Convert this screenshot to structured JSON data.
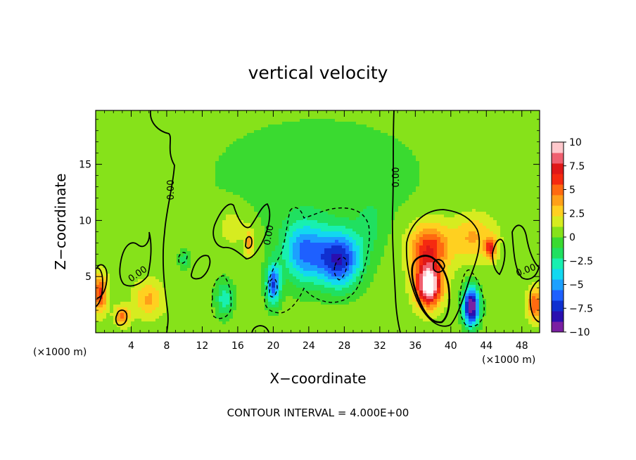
{
  "chart_data": {
    "type": "heatmap",
    "title": "vertical velocity",
    "xlabel": "X−coordinate",
    "ylabel": "Z−coordinate",
    "x_unit": "(×1000 m)",
    "y_unit": "(×1000 m)",
    "x_ticks": [
      4,
      8,
      12,
      16,
      20,
      24,
      28,
      32,
      36,
      40,
      44,
      48
    ],
    "y_ticks": [
      5,
      10,
      15
    ],
    "xlim": [
      0,
      50
    ],
    "ylim": [
      0,
      19.8
    ],
    "colorbar": {
      "ticks": [
        "10",
        "7.5",
        "5",
        "2.5",
        "0",
        "−2.5",
        "−5",
        "−7.5",
        "−10"
      ],
      "range": [
        -10,
        10
      ],
      "colors": [
        "#7a1fa2",
        "#2a0fb0",
        "#1030d0",
        "#1e60ff",
        "#1ca0ff",
        "#12d8f0",
        "#18f0b0",
        "#20e060",
        "#3ada30",
        "#86e21a",
        "#d6ec20",
        "#ffd020",
        "#ffa018",
        "#ff6a10",
        "#f52a10",
        "#e01818",
        "#f06070",
        "#ffc8cc"
      ]
    },
    "contour_interval_text": "CONTOUR INTERVAL = 4.000E+00",
    "contour_labels": [
      "0.00",
      "0.00",
      "0.00",
      "0.00",
      "0.00"
    ],
    "features": [
      {
        "kind": "updraft",
        "x": 37.5,
        "z": 4.2,
        "value": 11,
        "sx": 1.4,
        "sz": 1.8
      },
      {
        "kind": "updraft",
        "x": 37.5,
        "z": 7.5,
        "value": 6,
        "sx": 2.2,
        "sz": 2.2
      },
      {
        "kind": "updraft",
        "x": 42.5,
        "z": 8.5,
        "value": 3,
        "sx": 2.5,
        "sz": 2.0
      },
      {
        "kind": "updraft",
        "x": 44.5,
        "z": 7.5,
        "value": 5.5,
        "sx": 0.6,
        "sz": 0.9
      },
      {
        "kind": "updraft",
        "x": 0.5,
        "z": 3.5,
        "value": 5.5,
        "sx": 0.8,
        "sz": 1.6
      },
      {
        "kind": "updraft",
        "x": 49.5,
        "z": 2.5,
        "value": 5,
        "sx": 0.8,
        "sz": 1.4
      },
      {
        "kind": "updraft",
        "x": 3,
        "z": 1.5,
        "value": 4.5,
        "sx": 0.8,
        "sz": 0.8
      },
      {
        "kind": "updraft",
        "x": 6,
        "z": 3.0,
        "value": 3,
        "sx": 1.6,
        "sz": 1.5
      },
      {
        "kind": "updraft",
        "x": 17.3,
        "z": 8.0,
        "value": 3.5,
        "sx": 0.5,
        "sz": 1.2
      },
      {
        "kind": "updraft",
        "x": 15.5,
        "z": 9.5,
        "value": 1.5,
        "sx": 1.8,
        "sz": 1.8
      },
      {
        "kind": "downdraft",
        "x": 42.3,
        "z": 2.3,
        "value": -11,
        "sx": 0.9,
        "sz": 1.7
      },
      {
        "kind": "downdraft",
        "x": 27.5,
        "z": 6.5,
        "value": -8,
        "sx": 2.4,
        "sz": 2.5
      },
      {
        "kind": "downdraft",
        "x": 23.5,
        "z": 7.2,
        "value": -6,
        "sx": 2.5,
        "sz": 2.8
      },
      {
        "kind": "downdraft",
        "x": 20,
        "z": 4.3,
        "value": -7,
        "sx": 0.8,
        "sz": 1.8
      },
      {
        "kind": "downdraft",
        "x": 14.5,
        "z": 3.0,
        "value": -3.5,
        "sx": 1.0,
        "sz": 1.6
      },
      {
        "kind": "downdraft",
        "x": 10,
        "z": 6.5,
        "value": -2.5,
        "sx": 0.6,
        "sz": 0.8
      },
      {
        "kind": "downdraft",
        "x": 31,
        "z": 9.5,
        "value": -1.5,
        "sx": 1.6,
        "sz": 2.5
      }
    ]
  }
}
